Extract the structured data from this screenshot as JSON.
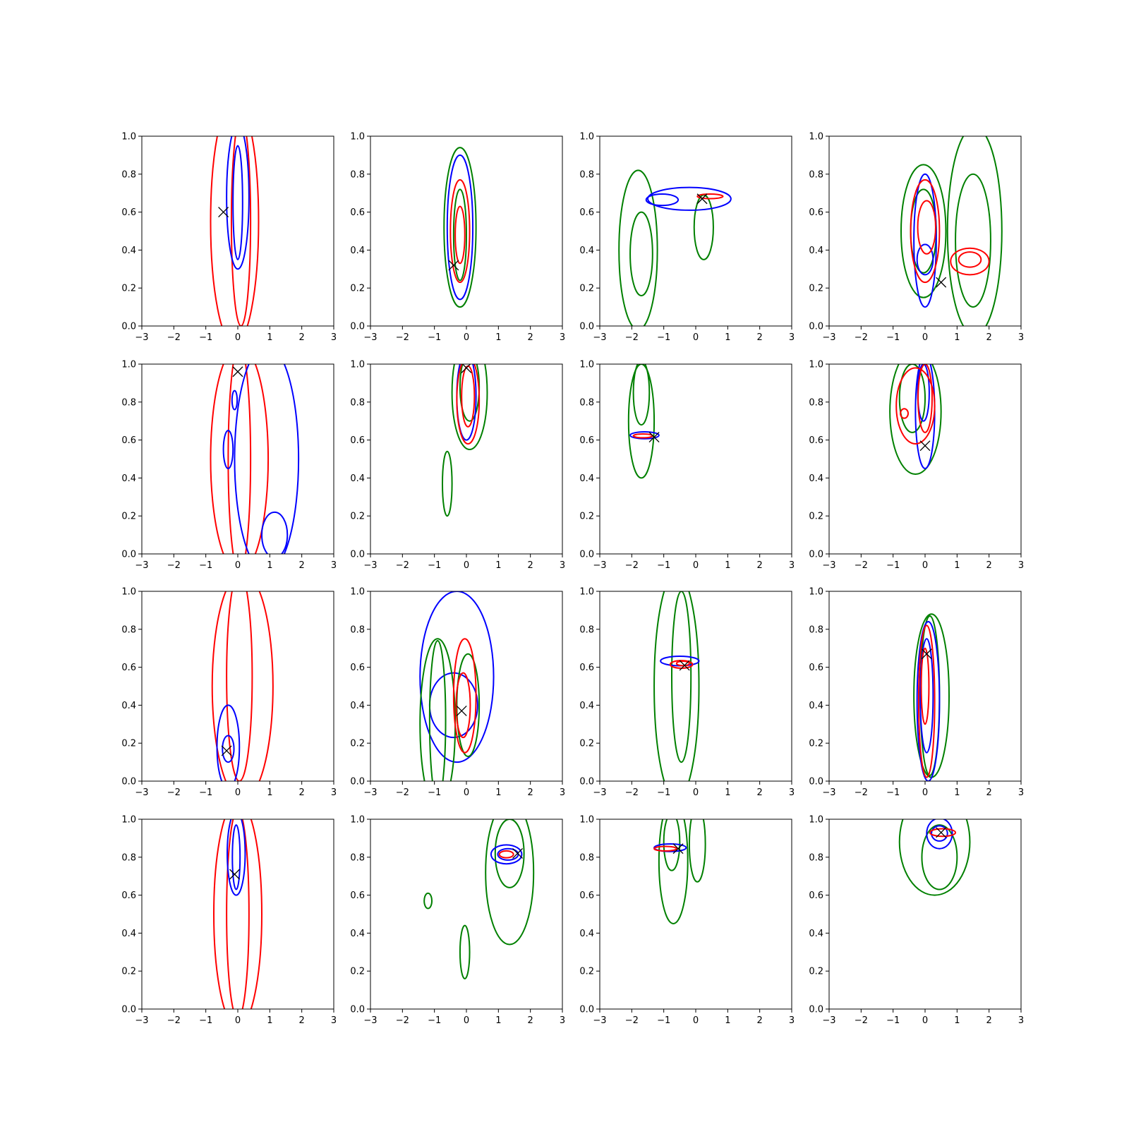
{
  "colors": {
    "series_red": "#ff0000",
    "series_blue": "#0000ff",
    "series_green": "#008000",
    "marker": "#000000"
  },
  "chart_data": {
    "type": "contour",
    "grid": {
      "rows": 4,
      "cols": 4
    },
    "xlim": [
      -3,
      3
    ],
    "ylim": [
      0,
      1
    ],
    "xticks": [
      -3,
      -2,
      -1,
      0,
      1,
      2,
      3
    ],
    "yticks": [
      0.0,
      0.2,
      0.4,
      0.6,
      0.8,
      1.0
    ],
    "xtick_labels": [
      "−3",
      "−2",
      "−1",
      "0",
      "1",
      "2",
      "3"
    ],
    "ytick_labels": [
      "0.0",
      "0.2",
      "0.4",
      "0.6",
      "0.8",
      "1.0"
    ],
    "panels": [
      {
        "marker": [
          -0.45,
          0.6
        ],
        "contours": [
          {
            "color": "red",
            "center": [
              -0.1,
              0.55
            ],
            "sx": 0.75,
            "sy": 0.65
          },
          {
            "color": "red",
            "center": [
              0.1,
              0.55
            ],
            "sx": 0.3,
            "sy": 0.55
          },
          {
            "color": "blue",
            "center": [
              0.0,
              0.68
            ],
            "sx": 0.35,
            "sy": 0.38
          },
          {
            "color": "blue",
            "center": [
              0.0,
              0.65
            ],
            "sx": 0.15,
            "sy": 0.3
          }
        ]
      },
      {
        "marker": [
          -0.4,
          0.32
        ],
        "contours": [
          {
            "color": "green",
            "center": [
              -0.2,
              0.52
            ],
            "sx": 0.5,
            "sy": 0.42
          },
          {
            "color": "blue",
            "center": [
              -0.2,
              0.52
            ],
            "sx": 0.4,
            "sy": 0.38
          },
          {
            "color": "red",
            "center": [
              -0.2,
              0.5
            ],
            "sx": 0.3,
            "sy": 0.27
          },
          {
            "color": "green",
            "center": [
              -0.2,
              0.48
            ],
            "sx": 0.2,
            "sy": 0.24
          },
          {
            "color": "red",
            "center": [
              -0.2,
              0.48
            ],
            "sx": 0.15,
            "sy": 0.15
          }
        ]
      },
      {
        "marker": [
          0.2,
          0.67
        ],
        "contours": [
          {
            "color": "green",
            "center": [
              -1.8,
              0.4
            ],
            "sx": 0.6,
            "sy": 0.42
          },
          {
            "color": "green",
            "center": [
              -1.7,
              0.38
            ],
            "sx": 0.35,
            "sy": 0.22
          },
          {
            "color": "green",
            "center": [
              0.25,
              0.52
            ],
            "sx": 0.3,
            "sy": 0.17
          },
          {
            "color": "blue",
            "center": [
              -0.2,
              0.67
            ],
            "sx": 1.3,
            "sy": 0.06
          },
          {
            "color": "blue",
            "center": [
              -1.05,
              0.665
            ],
            "sx": 0.5,
            "sy": 0.03
          },
          {
            "color": "red",
            "center": [
              0.45,
              0.683
            ],
            "sx": 0.4,
            "sy": 0.012
          }
        ]
      },
      {
        "marker": [
          0.5,
          0.23
        ],
        "contours": [
          {
            "color": "green",
            "center": [
              -0.05,
              0.5
            ],
            "sx": 0.7,
            "sy": 0.35
          },
          {
            "color": "green",
            "center": [
              -0.05,
              0.5
            ],
            "sx": 0.4,
            "sy": 0.22
          },
          {
            "color": "green",
            "center": [
              1.55,
              0.5
            ],
            "sx": 0.85,
            "sy": 0.55
          },
          {
            "color": "green",
            "center": [
              1.5,
              0.45
            ],
            "sx": 0.55,
            "sy": 0.35
          },
          {
            "color": "blue",
            "center": [
              0.0,
              0.45
            ],
            "sx": 0.35,
            "sy": 0.35
          },
          {
            "color": "blue",
            "center": [
              0.0,
              0.35
            ],
            "sx": 0.25,
            "sy": 0.08
          },
          {
            "color": "red",
            "center": [
              0.0,
              0.5
            ],
            "sx": 0.45,
            "sy": 0.27
          },
          {
            "color": "red",
            "center": [
              0.05,
              0.52
            ],
            "sx": 0.28,
            "sy": 0.14
          },
          {
            "color": "red",
            "center": [
              1.4,
              0.34
            ],
            "sx": 0.6,
            "sy": 0.07
          },
          {
            "color": "red",
            "center": [
              1.4,
              0.35
            ],
            "sx": 0.35,
            "sy": 0.04
          }
        ]
      },
      {
        "marker": [
          0.0,
          0.96
        ],
        "contours": [
          {
            "color": "red",
            "center": [
              0.05,
              0.5
            ],
            "sx": 0.9,
            "sy": 0.6
          },
          {
            "color": "red",
            "center": [
              0.05,
              0.5
            ],
            "sx": 0.35,
            "sy": 0.6
          },
          {
            "color": "blue",
            "center": [
              0.9,
              0.5
            ],
            "sx": 1.0,
            "sy": 0.6
          },
          {
            "color": "blue",
            "center": [
              -0.3,
              0.55
            ],
            "sx": 0.15,
            "sy": 0.1
          },
          {
            "color": "blue",
            "center": [
              -0.1,
              0.81
            ],
            "sx": 0.08,
            "sy": 0.05
          },
          {
            "color": "blue",
            "center": [
              1.15,
              0.1
            ],
            "sx": 0.4,
            "sy": 0.12
          }
        ]
      },
      {
        "marker": [
          0.0,
          0.98
        ],
        "contours": [
          {
            "color": "green",
            "center": [
              0.1,
              0.85
            ],
            "sx": 0.55,
            "sy": 0.3
          },
          {
            "color": "green",
            "center": [
              0.1,
              0.88
            ],
            "sx": 0.3,
            "sy": 0.18
          },
          {
            "color": "green",
            "center": [
              -0.6,
              0.37
            ],
            "sx": 0.15,
            "sy": 0.17
          },
          {
            "color": "blue",
            "center": [
              0.0,
              0.83
            ],
            "sx": 0.3,
            "sy": 0.23
          },
          {
            "color": "red",
            "center": [
              0.05,
              0.81
            ],
            "sx": 0.35,
            "sy": 0.23
          },
          {
            "color": "red",
            "center": [
              0.05,
              0.83
            ],
            "sx": 0.2,
            "sy": 0.16
          }
        ]
      },
      {
        "marker": [
          -1.3,
          0.615
        ],
        "contours": [
          {
            "color": "green",
            "center": [
              -1.7,
              0.7
            ],
            "sx": 0.4,
            "sy": 0.3
          },
          {
            "color": "green",
            "center": [
              -1.7,
              0.85
            ],
            "sx": 0.25,
            "sy": 0.17
          },
          {
            "color": "blue",
            "center": [
              -1.6,
              0.625
            ],
            "sx": 0.45,
            "sy": 0.018
          },
          {
            "color": "red",
            "center": [
              -1.65,
              0.622
            ],
            "sx": 0.3,
            "sy": 0.01
          }
        ]
      },
      {
        "marker": [
          0.0,
          0.57
        ],
        "contours": [
          {
            "color": "green",
            "center": [
              -0.3,
              0.75
            ],
            "sx": 0.8,
            "sy": 0.33
          },
          {
            "color": "green",
            "center": [
              -0.4,
              0.82
            ],
            "sx": 0.4,
            "sy": 0.18
          },
          {
            "color": "blue",
            "center": [
              0.0,
              0.75
            ],
            "sx": 0.3,
            "sy": 0.3
          },
          {
            "color": "blue",
            "center": [
              -0.05,
              0.85
            ],
            "sx": 0.18,
            "sy": 0.15
          },
          {
            "color": "red",
            "center": [
              -0.3,
              0.78
            ],
            "sx": 0.6,
            "sy": 0.2
          },
          {
            "color": "red",
            "center": [
              0.0,
              0.82
            ],
            "sx": 0.22,
            "sy": 0.18
          },
          {
            "color": "red",
            "center": [
              -0.65,
              0.74
            ],
            "sx": 0.12,
            "sy": 0.025
          }
        ]
      },
      {
        "marker": [
          -0.35,
          0.16
        ],
        "contours": [
          {
            "color": "red",
            "center": [
              0.15,
              0.5
            ],
            "sx": 0.95,
            "sy": 0.6
          },
          {
            "color": "red",
            "center": [
              0.05,
              0.55
            ],
            "sx": 0.4,
            "sy": 0.55
          },
          {
            "color": "blue",
            "center": [
              -0.3,
              0.18
            ],
            "sx": 0.35,
            "sy": 0.22
          },
          {
            "color": "blue",
            "center": [
              -0.3,
              0.17
            ],
            "sx": 0.18,
            "sy": 0.07
          }
        ]
      },
      {
        "marker": [
          -0.15,
          0.37
        ],
        "contours": [
          {
            "color": "blue",
            "center": [
              -0.3,
              0.55
            ],
            "sx": 1.15,
            "sy": 0.45
          },
          {
            "color": "blue",
            "center": [
              -0.4,
              0.4
            ],
            "sx": 0.75,
            "sy": 0.17
          },
          {
            "color": "green",
            "center": [
              -0.9,
              0.3
            ],
            "sx": 0.55,
            "sy": 0.45
          },
          {
            "color": "green",
            "center": [
              -0.9,
              0.32
            ],
            "sx": 0.25,
            "sy": 0.42
          },
          {
            "color": "green",
            "center": [
              0.05,
              0.4
            ],
            "sx": 0.35,
            "sy": 0.27
          },
          {
            "color": "red",
            "center": [
              -0.05,
              0.45
            ],
            "sx": 0.35,
            "sy": 0.3
          },
          {
            "color": "red",
            "center": [
              -0.1,
              0.4
            ],
            "sx": 0.22,
            "sy": 0.17
          }
        ]
      },
      {
        "marker": [
          -0.35,
          0.61
        ],
        "contours": [
          {
            "color": "green",
            "center": [
              -0.6,
              0.5
            ],
            "sx": 0.7,
            "sy": 0.6
          },
          {
            "color": "green",
            "center": [
              -0.45,
              0.55
            ],
            "sx": 0.3,
            "sy": 0.45
          },
          {
            "color": "blue",
            "center": [
              -0.5,
              0.633
            ],
            "sx": 0.6,
            "sy": 0.025
          },
          {
            "color": "red",
            "center": [
              -0.45,
              0.615
            ],
            "sx": 0.35,
            "sy": 0.02
          },
          {
            "color": "red",
            "center": [
              -0.4,
              0.62
            ],
            "sx": 0.2,
            "sy": 0.012
          }
        ]
      },
      {
        "marker": [
          0.05,
          0.67
        ],
        "contours": [
          {
            "color": "green",
            "center": [
              0.2,
              0.45
            ],
            "sx": 0.55,
            "sy": 0.43
          },
          {
            "color": "green",
            "center": [
              0.15,
              0.45
            ],
            "sx": 0.3,
            "sy": 0.42
          },
          {
            "color": "blue",
            "center": [
              0.1,
              0.42
            ],
            "sx": 0.35,
            "sy": 0.42
          },
          {
            "color": "blue",
            "center": [
              0.05,
              0.45
            ],
            "sx": 0.2,
            "sy": 0.3
          },
          {
            "color": "red",
            "center": [
              0.05,
              0.42
            ],
            "sx": 0.25,
            "sy": 0.4
          },
          {
            "color": "red",
            "center": [
              0.0,
              0.5
            ],
            "sx": 0.12,
            "sy": 0.2
          }
        ]
      },
      {
        "marker": [
          -0.1,
          0.71
        ],
        "contours": [
          {
            "color": "red",
            "center": [
              0.0,
              0.5
            ],
            "sx": 0.75,
            "sy": 0.6
          },
          {
            "color": "red",
            "center": [
              0.0,
              0.5
            ],
            "sx": 0.35,
            "sy": 0.55
          },
          {
            "color": "blue",
            "center": [
              -0.05,
              0.82
            ],
            "sx": 0.28,
            "sy": 0.22
          },
          {
            "color": "blue",
            "center": [
              -0.05,
              0.8
            ],
            "sx": 0.12,
            "sy": 0.17
          }
        ]
      },
      {
        "marker": [
          1.6,
          0.82
        ],
        "contours": [
          {
            "color": "green",
            "center": [
              1.35,
              0.72
            ],
            "sx": 0.75,
            "sy": 0.38
          },
          {
            "color": "green",
            "center": [
              1.35,
              0.82
            ],
            "sx": 0.45,
            "sy": 0.18
          },
          {
            "color": "green",
            "center": [
              -1.2,
              0.57
            ],
            "sx": 0.12,
            "sy": 0.04
          },
          {
            "color": "green",
            "center": [
              -0.05,
              0.3
            ],
            "sx": 0.15,
            "sy": 0.14
          },
          {
            "color": "blue",
            "center": [
              1.25,
              0.815
            ],
            "sx": 0.48,
            "sy": 0.05
          },
          {
            "color": "blue",
            "center": [
              1.3,
              0.815
            ],
            "sx": 0.32,
            "sy": 0.03
          },
          {
            "color": "red",
            "center": [
              1.25,
              0.815
            ],
            "sx": 0.22,
            "sy": 0.018
          }
        ]
      },
      {
        "marker": [
          -0.55,
          0.845
        ],
        "contours": [
          {
            "color": "green",
            "center": [
              -0.7,
              0.78
            ],
            "sx": 0.45,
            "sy": 0.33
          },
          {
            "color": "green",
            "center": [
              -0.75,
              0.88
            ],
            "sx": 0.25,
            "sy": 0.15
          },
          {
            "color": "green",
            "center": [
              0.05,
              0.87
            ],
            "sx": 0.25,
            "sy": 0.2
          },
          {
            "color": "blue",
            "center": [
              -0.8,
              0.85
            ],
            "sx": 0.5,
            "sy": 0.02
          },
          {
            "color": "red",
            "center": [
              -0.95,
              0.845
            ],
            "sx": 0.35,
            "sy": 0.012
          }
        ]
      },
      {
        "marker": [
          0.5,
          0.93
        ],
        "contours": [
          {
            "color": "green",
            "center": [
              0.3,
              0.88
            ],
            "sx": 1.1,
            "sy": 0.28
          },
          {
            "color": "green",
            "center": [
              0.45,
              0.8
            ],
            "sx": 0.55,
            "sy": 0.17
          },
          {
            "color": "blue",
            "center": [
              0.45,
              0.925
            ],
            "sx": 0.4,
            "sy": 0.08
          },
          {
            "color": "blue",
            "center": [
              0.45,
              0.925
            ],
            "sx": 0.25,
            "sy": 0.04
          },
          {
            "color": "red",
            "center": [
              0.55,
              0.93
            ],
            "sx": 0.4,
            "sy": 0.02
          }
        ]
      }
    ]
  }
}
